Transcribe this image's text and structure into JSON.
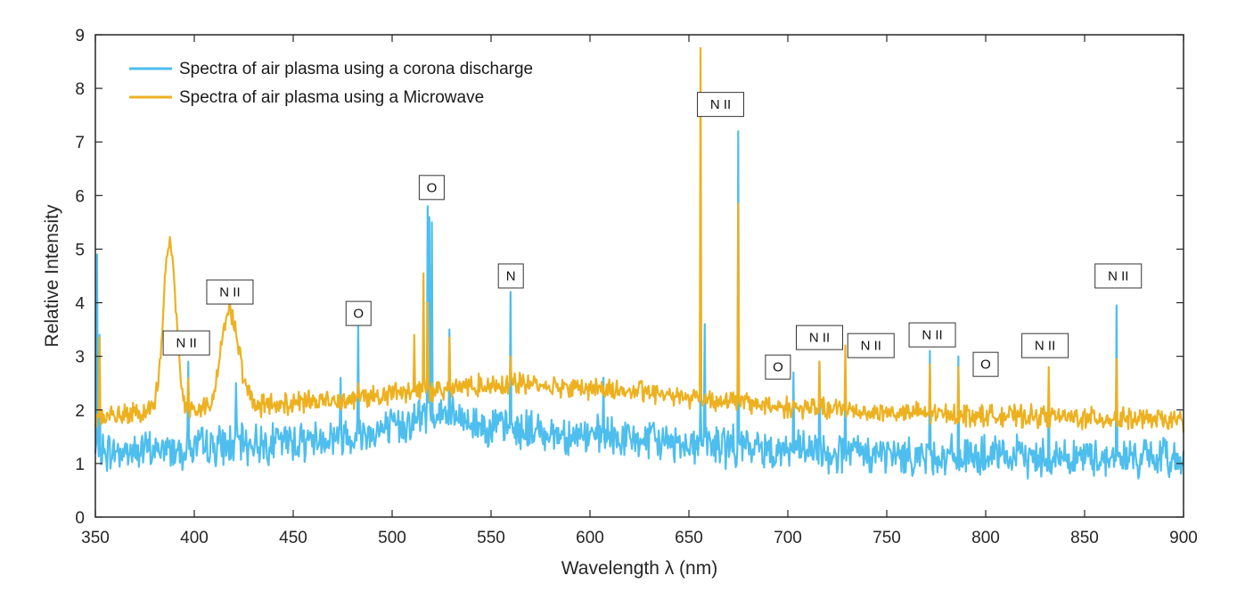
{
  "chart_data": {
    "type": "line",
    "title": "",
    "xlabel": "Wavelength λ (nm)",
    "ylabel": "Relative Intensity",
    "xlim": [
      350,
      900
    ],
    "ylim": [
      0,
      9
    ],
    "xticks": [
      350,
      400,
      450,
      500,
      550,
      600,
      650,
      700,
      750,
      800,
      850,
      900
    ],
    "yticks": [
      0,
      1,
      2,
      3,
      4,
      5,
      6,
      7,
      8,
      9
    ],
    "grid": false,
    "legend_position": "top-left",
    "series": [
      {
        "name": "Spectra of air plasma using a corona discharge",
        "color": "#4DBEEE",
        "baseline": [
          [
            350,
            1.2
          ],
          [
            380,
            1.25
          ],
          [
            420,
            1.35
          ],
          [
            460,
            1.45
          ],
          [
            500,
            1.65
          ],
          [
            520,
            1.95
          ],
          [
            540,
            1.75
          ],
          [
            560,
            1.65
          ],
          [
            600,
            1.5
          ],
          [
            640,
            1.4
          ],
          [
            680,
            1.3
          ],
          [
            720,
            1.2
          ],
          [
            760,
            1.15
          ],
          [
            800,
            1.12
          ],
          [
            850,
            1.12
          ],
          [
            900,
            1.1
          ]
        ],
        "noise": 0.55,
        "peaks": [
          [
            351,
            4.9
          ],
          [
            352,
            3.4
          ],
          [
            397,
            2.9
          ],
          [
            421,
            2.5
          ],
          [
            474,
            2.6
          ],
          [
            483,
            3.6
          ],
          [
            518,
            5.8
          ],
          [
            519,
            5.6
          ],
          [
            520,
            5.5
          ],
          [
            529,
            3.5
          ],
          [
            560,
            4.2
          ],
          [
            607,
            2.6
          ],
          [
            656,
            2.4
          ],
          [
            658,
            3.6
          ],
          [
            675,
            7.2
          ],
          [
            703,
            2.7
          ],
          [
            716,
            2.9
          ],
          [
            729,
            2.7
          ],
          [
            772,
            3.1
          ],
          [
            786,
            3.0
          ],
          [
            832,
            2.5
          ],
          [
            866,
            3.95
          ]
        ]
      },
      {
        "name": "Spectra of air plasma using a Microwave",
        "color": "#EDB120",
        "baseline": [
          [
            350,
            1.85
          ],
          [
            380,
            1.95
          ],
          [
            420,
            2.05
          ],
          [
            460,
            2.15
          ],
          [
            500,
            2.3
          ],
          [
            540,
            2.45
          ],
          [
            560,
            2.5
          ],
          [
            600,
            2.4
          ],
          [
            640,
            2.3
          ],
          [
            660,
            2.2
          ],
          [
            700,
            2.05
          ],
          [
            750,
            1.95
          ],
          [
            800,
            1.9
          ],
          [
            850,
            1.85
          ],
          [
            900,
            1.8
          ]
        ],
        "noise": 0.3,
        "peaks": [
          [
            352,
            3.35
          ],
          [
            397,
            2.6
          ],
          [
            483,
            2.5
          ],
          [
            511,
            3.4
          ],
          [
            516,
            4.55
          ],
          [
            518,
            4.0
          ],
          [
            529,
            3.35
          ],
          [
            560,
            3.0
          ],
          [
            656,
            8.75
          ],
          [
            675,
            5.85
          ],
          [
            716,
            2.9
          ],
          [
            729,
            3.2
          ],
          [
            772,
            2.85
          ],
          [
            786,
            2.8
          ],
          [
            832,
            2.8
          ],
          [
            866,
            2.95
          ]
        ],
        "bumps": [
          [
            387.5,
            5.1,
            3.2
          ],
          [
            418,
            3.85,
            4.5
          ]
        ]
      }
    ],
    "annotations": [
      {
        "text": "N II",
        "x": 396,
        "y": 3.25
      },
      {
        "text": "N II",
        "x": 418,
        "y": 4.2
      },
      {
        "text": "O",
        "x": 483,
        "y": 3.8
      },
      {
        "text": "O",
        "x": 520,
        "y": 6.15
      },
      {
        "text": "N",
        "x": 560,
        "y": 4.5
      },
      {
        "text": "N II",
        "x": 666,
        "y": 7.7
      },
      {
        "text": "O",
        "x": 695,
        "y": 2.8
      },
      {
        "text": "N II",
        "x": 716,
        "y": 3.35
      },
      {
        "text": "N II",
        "x": 742,
        "y": 3.2
      },
      {
        "text": "N II",
        "x": 773,
        "y": 3.4
      },
      {
        "text": "O",
        "x": 800,
        "y": 2.85
      },
      {
        "text": "N II",
        "x": 830,
        "y": 3.2
      },
      {
        "text": "N II",
        "x": 867,
        "y": 4.5
      }
    ]
  }
}
